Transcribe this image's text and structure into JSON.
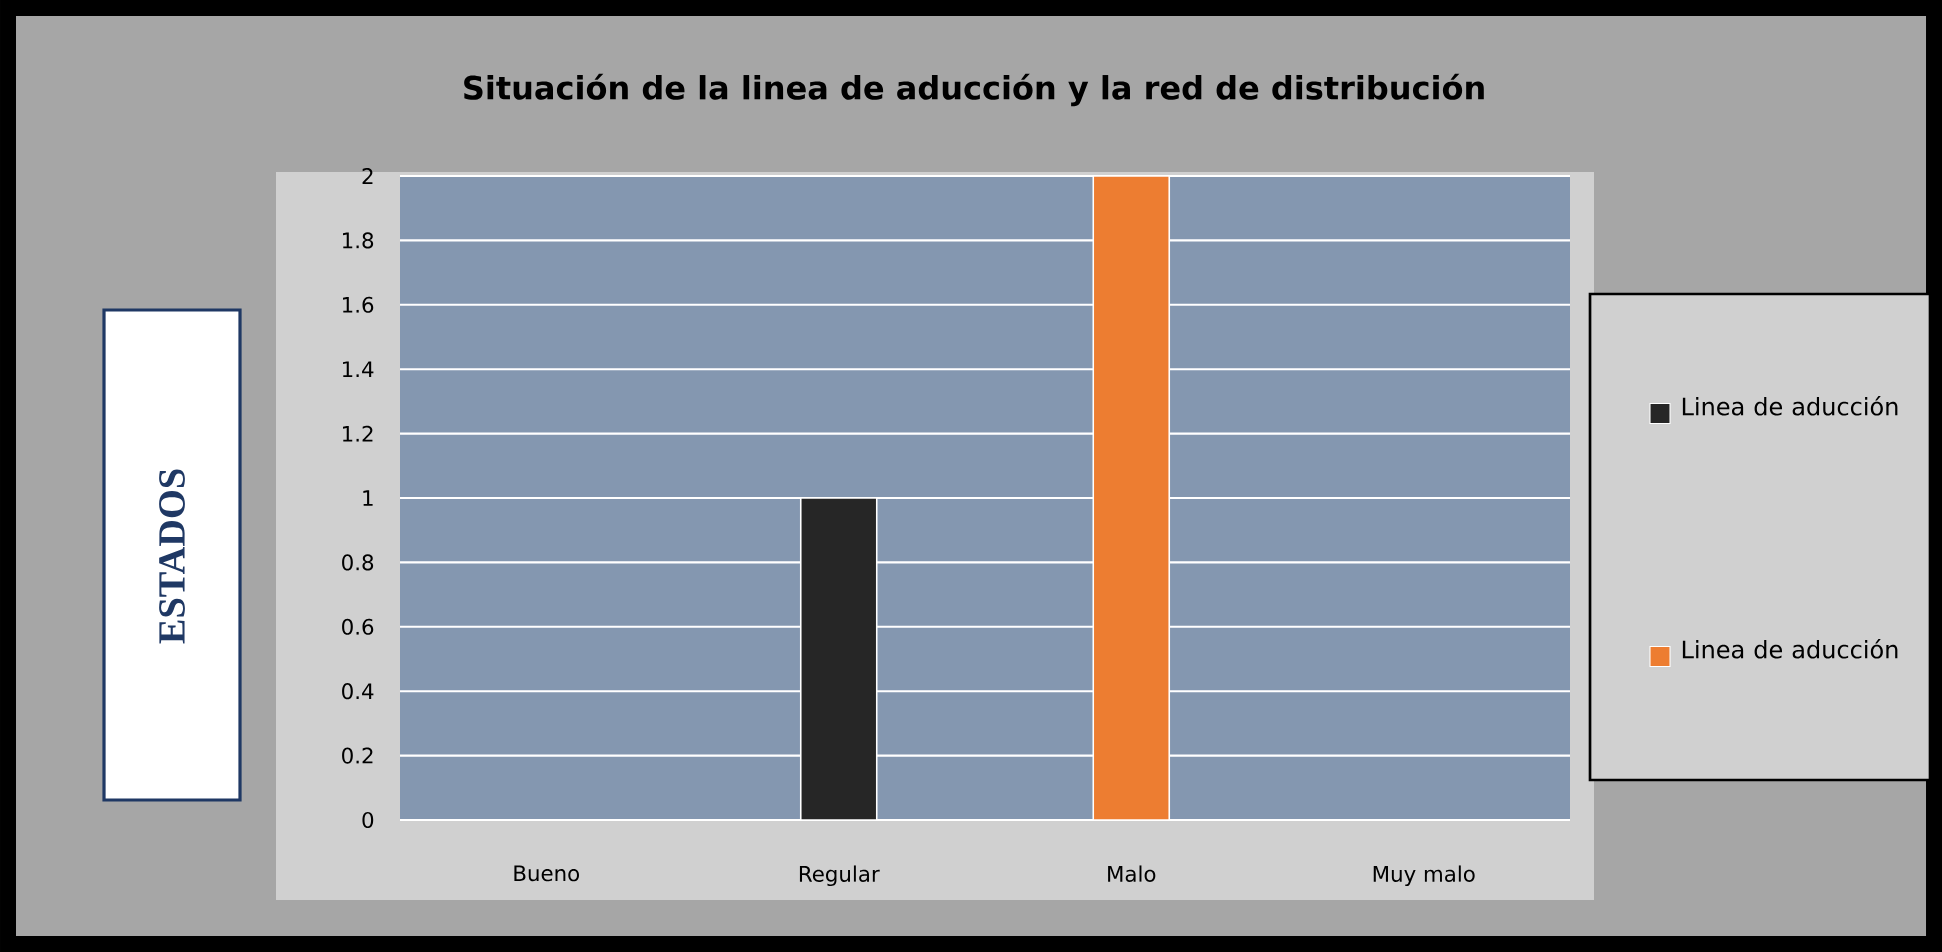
{
  "chart_data": {
    "type": "bar",
    "title": "Situación de la linea de aducción y la red de distribución",
    "ylabel": "ESTADOS",
    "categories": [
      "Bueno",
      "Regular",
      "Malo",
      "Muy malo"
    ],
    "series": [
      {
        "name": "Linea de aducción",
        "color": "#262626",
        "values": [
          null,
          1,
          null,
          null
        ]
      },
      {
        "name": "Linea de aducción",
        "color": "#ed7d31",
        "values": [
          null,
          null,
          2,
          null
        ]
      }
    ],
    "ylim": [
      0,
      2
    ],
    "yticks": [
      0,
      0.2,
      0.4,
      0.6,
      0.8,
      1,
      1.2,
      1.4,
      1.6,
      1.8,
      2
    ],
    "grid": "y",
    "legend": "right"
  }
}
